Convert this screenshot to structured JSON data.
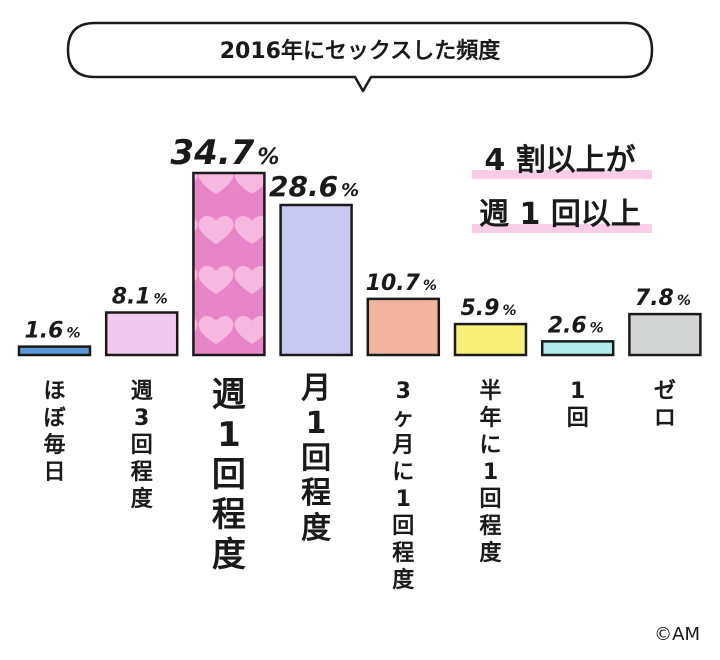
{
  "chart_data": {
    "type": "bar",
    "title": "2016年にセックスした頻度",
    "categories": [
      "ほぼ毎日",
      "週3回程度",
      "週1回程度",
      "月1回程度",
      "3ヶ月に1回程度",
      "半年に1回程度",
      "1回",
      "ゼロ"
    ],
    "values": [
      1.6,
      8.1,
      34.7,
      28.6,
      10.7,
      5.9,
      2.6,
      7.8
    ],
    "value_unit": "%",
    "colors": [
      "#5a9ad8",
      "#f2c8ec",
      "#e884c8",
      "#c8c8f2",
      "#f2b49e",
      "#f6ef78",
      "#b0ecec",
      "#d4d6d6"
    ],
    "highlight_index": 2,
    "annotation_lines": [
      "4 割以上が",
      "週 1 回以上"
    ]
  },
  "credit": "©AM"
}
